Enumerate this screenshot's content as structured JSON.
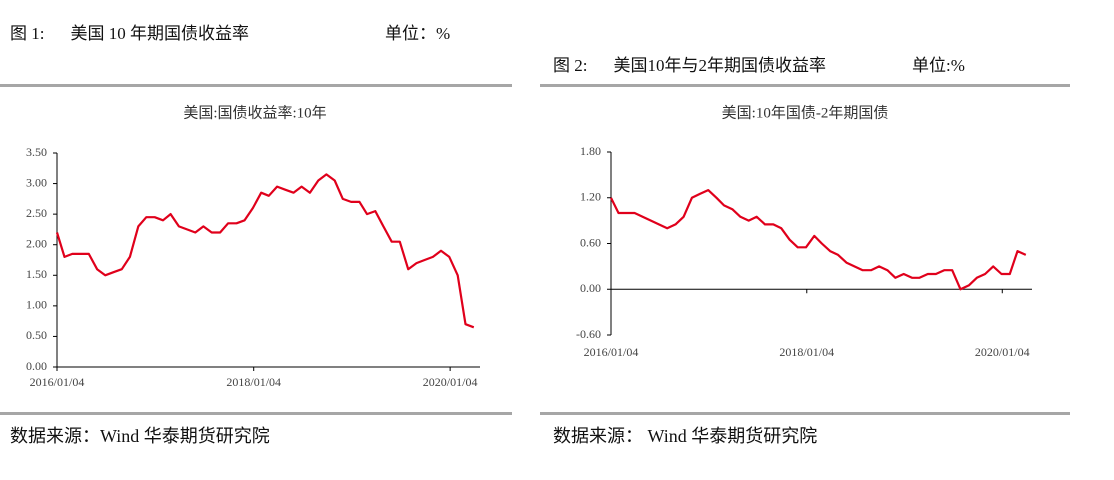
{
  "figures": [
    {
      "label": "图 1:",
      "caption": "美国 10 年期国债收益率",
      "unit": "单位：%",
      "source": "数据来源：Wind  华泰期货研究院"
    },
    {
      "label": "图 2:",
      "caption": "美国10年与2年期国债收益率",
      "unit": "单位:%",
      "source": "数据来源：  Wind  华泰期货研究院"
    }
  ],
  "chart_data": [
    {
      "type": "line",
      "title": "美国:国债收益率:10年",
      "x": [
        "2016/01/04",
        "2016/02/01",
        "2016/03/01",
        "2016/04/01",
        "2016/05/01",
        "2016/06/01",
        "2016/07/01",
        "2016/08/01",
        "2016/09/01",
        "2016/10/01",
        "2016/11/01",
        "2016/12/01",
        "2017/01/01",
        "2017/02/01",
        "2017/03/01",
        "2017/04/01",
        "2017/05/01",
        "2017/06/01",
        "2017/07/01",
        "2017/08/01",
        "2017/09/01",
        "2017/10/01",
        "2017/11/01",
        "2017/12/01",
        "2018/01/01",
        "2018/02/01",
        "2018/03/01",
        "2018/04/01",
        "2018/05/01",
        "2018/06/01",
        "2018/07/01",
        "2018/08/01",
        "2018/09/01",
        "2018/10/01",
        "2018/11/01",
        "2018/12/01",
        "2019/01/01",
        "2019/02/01",
        "2019/03/01",
        "2019/04/01",
        "2019/05/01",
        "2019/06/01",
        "2019/07/01",
        "2019/08/01",
        "2019/09/01",
        "2019/10/01",
        "2019/11/01",
        "2019/12/01",
        "2020/01/01",
        "2020/02/01",
        "2020/03/01",
        "2020/04/01"
      ],
      "series": [
        {
          "name": "美国:国债收益率:10年",
          "color": "#e0001b",
          "values": [
            2.2,
            1.8,
            1.85,
            1.85,
            1.85,
            1.6,
            1.5,
            1.55,
            1.6,
            1.8,
            2.3,
            2.45,
            2.45,
            2.4,
            2.5,
            2.3,
            2.25,
            2.2,
            2.3,
            2.2,
            2.2,
            2.35,
            2.35,
            2.4,
            2.6,
            2.85,
            2.8,
            2.95,
            2.9,
            2.85,
            2.95,
            2.85,
            3.05,
            3.15,
            3.05,
            2.75,
            2.7,
            2.7,
            2.5,
            2.55,
            2.3,
            2.05,
            2.05,
            1.6,
            1.7,
            1.75,
            1.8,
            1.9,
            1.8,
            1.5,
            0.7,
            0.65
          ]
        }
      ],
      "xlim": [
        "2016/01/04",
        "2020/04/24"
      ],
      "xticks": [
        "2016/01/04",
        "2018/01/04",
        "2020/01/04"
      ],
      "ylim": [
        0,
        3.5
      ],
      "yticks": [
        {
          "value": 0,
          "label": "0.00"
        },
        {
          "value": 0.5,
          "label": "0.50"
        },
        {
          "value": 1,
          "label": "1.00"
        },
        {
          "value": 1.5,
          "label": "1.50"
        },
        {
          "value": 2,
          "label": "2.00"
        },
        {
          "value": 2.5,
          "label": "2.50"
        },
        {
          "value": 3,
          "label": "3.00"
        },
        {
          "value": 3.5,
          "label": "3.50"
        }
      ]
    },
    {
      "type": "line",
      "title": "美国:10年国债-2年期国债",
      "x": [
        "2016/01/04",
        "2016/02/01",
        "2016/03/01",
        "2016/04/01",
        "2016/05/01",
        "2016/06/01",
        "2016/07/01",
        "2016/08/01",
        "2016/09/01",
        "2016/10/01",
        "2016/11/01",
        "2016/12/01",
        "2017/01/01",
        "2017/02/01",
        "2017/03/01",
        "2017/04/01",
        "2017/05/01",
        "2017/06/01",
        "2017/07/01",
        "2017/08/01",
        "2017/09/01",
        "2017/10/01",
        "2017/11/01",
        "2017/12/01",
        "2018/01/01",
        "2018/02/01",
        "2018/03/01",
        "2018/04/01",
        "2018/05/01",
        "2018/06/01",
        "2018/07/01",
        "2018/08/01",
        "2018/09/01",
        "2018/10/01",
        "2018/11/01",
        "2018/12/01",
        "2019/01/01",
        "2019/02/01",
        "2019/03/01",
        "2019/04/01",
        "2019/05/01",
        "2019/06/01",
        "2019/07/01",
        "2019/08/01",
        "2019/09/01",
        "2019/10/01",
        "2019/11/01",
        "2019/12/01",
        "2020/01/01",
        "2020/02/01",
        "2020/03/01",
        "2020/04/01"
      ],
      "series": [
        {
          "name": "美国:10年国债-2年期国债",
          "color": "#e0001b",
          "values": [
            1.2,
            1.0,
            1.0,
            1.0,
            0.95,
            0.9,
            0.85,
            0.8,
            0.85,
            0.95,
            1.2,
            1.25,
            1.3,
            1.2,
            1.1,
            1.05,
            0.95,
            0.9,
            0.95,
            0.85,
            0.85,
            0.8,
            0.65,
            0.55,
            0.55,
            0.7,
            0.6,
            0.5,
            0.45,
            0.35,
            0.3,
            0.25,
            0.25,
            0.3,
            0.25,
            0.15,
            0.2,
            0.15,
            0.15,
            0.2,
            0.2,
            0.25,
            0.25,
            0.0,
            0.05,
            0.15,
            0.2,
            0.3,
            0.2,
            0.2,
            0.5,
            0.45
          ]
        }
      ],
      "xlim": [
        "2016/01/04",
        "2020/04/24"
      ],
      "xticks": [
        "2016/01/04",
        "2018/01/04",
        "2020/01/04"
      ],
      "ylim": [
        -0.6,
        1.8
      ],
      "yticks": [
        {
          "value": -0.6,
          "label": "-0.60"
        },
        {
          "value": 0,
          "label": "0.00"
        },
        {
          "value": 0.6,
          "label": "0.60"
        },
        {
          "value": 1.2,
          "label": "1.20"
        },
        {
          "value": 1.8,
          "label": "1.80"
        }
      ]
    }
  ]
}
